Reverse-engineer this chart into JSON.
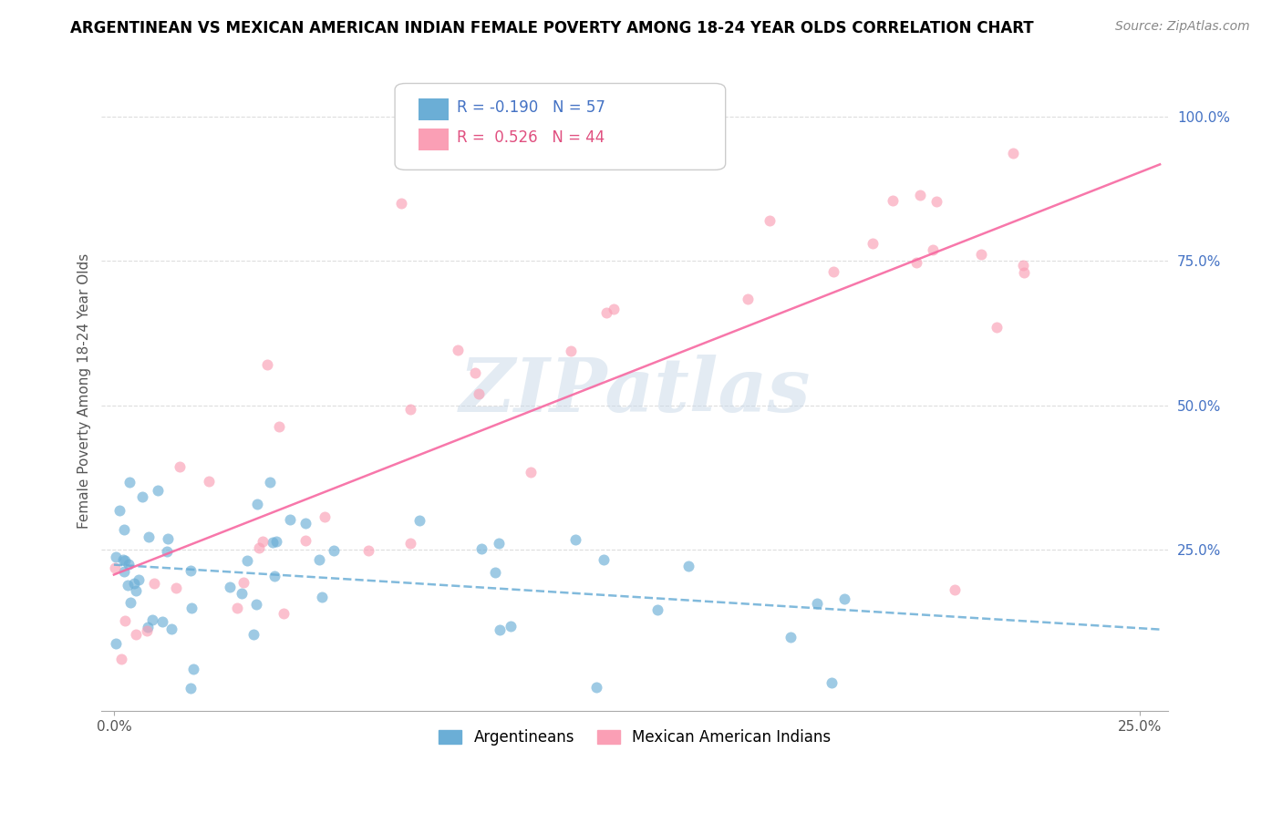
{
  "title": "ARGENTINEAN VS MEXICAN AMERICAN INDIAN FEMALE POVERTY AMONG 18-24 YEAR OLDS CORRELATION CHART",
  "source": "Source: ZipAtlas.com",
  "ylabel": "Female Poverty Among 18-24 Year Olds",
  "xlim": [
    0.0,
    0.25
  ],
  "ylim": [
    0.0,
    1.05
  ],
  "xtick_vals": [
    0.0,
    0.25
  ],
  "xtick_labels": [
    "0.0%",
    "25.0%"
  ],
  "ytick_vals": [
    0.25,
    0.5,
    0.75,
    1.0
  ],
  "ytick_labels": [
    "25.0%",
    "50.0%",
    "75.0%",
    "100.0%"
  ],
  "legend_entries": [
    "Argentineans",
    "Mexican American Indians"
  ],
  "r_argentinean": -0.19,
  "n_argentinean": 57,
  "r_mexican": 0.526,
  "n_mexican": 44,
  "blue_color": "#6baed6",
  "pink_color": "#fa9fb5",
  "blue_line_color": "#6baed6",
  "pink_line_color": "#f768a1",
  "watermark": "ZIPatlas",
  "title_fontsize": 12,
  "source_fontsize": 10,
  "tick_fontsize": 11,
  "ylabel_fontsize": 11,
  "ytick_color": "#4472c4",
  "xtick_color": "#555555",
  "grid_color": "#dddddd",
  "spine_color": "#aaaaaa"
}
